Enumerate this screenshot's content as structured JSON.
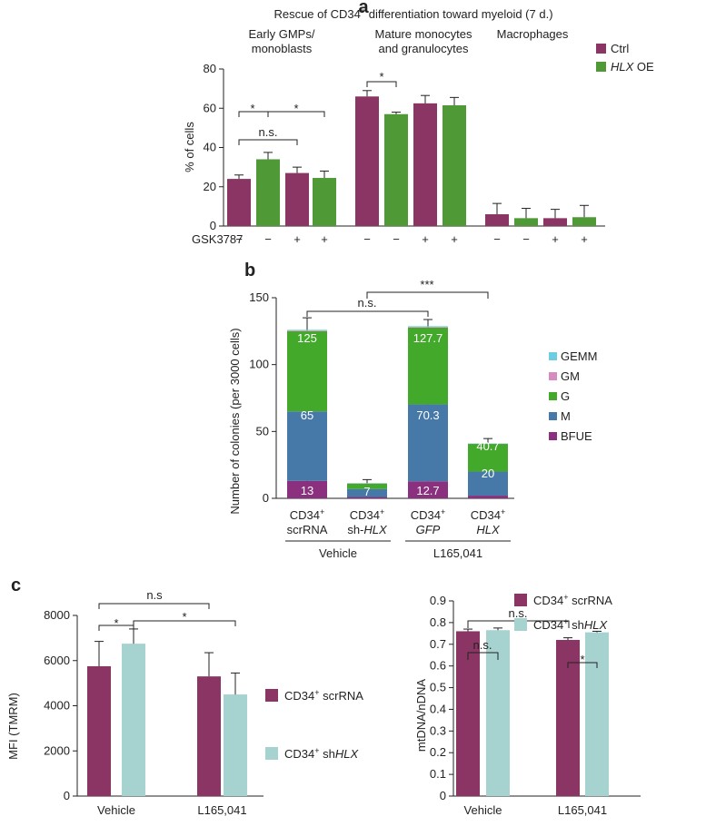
{
  "colors": {
    "ctrl": "#8a3563",
    "oe": "#4f9a36",
    "scr": "#8a3563",
    "sh": "#a6d2cf",
    "BFUE": "#8b2f7f",
    "M": "#4679a8",
    "G": "#43a92b",
    "GM": "#d58cc0",
    "GEMM": "#6ecde0"
  },
  "panel_a": {
    "letter": "a",
    "title_pre": "Rescue of CD34",
    "title_sup": "+",
    "title_post": " differentiation toward myeloid (7 d.)",
    "group_labels": [
      [
        "Early GMPs/",
        "monoblasts"
      ],
      [
        "Mature monocytes",
        "and granulocytes"
      ],
      [
        "Macrophages"
      ]
    ],
    "legend": {
      "ctrl": "Ctrl",
      "oe_italic": "HLX",
      "oe_rest": " OE"
    },
    "treatment_label": "GSK3787",
    "treatment_signs": [
      "−",
      "−",
      "+",
      "+",
      "−",
      "−",
      "+",
      "+",
      "−",
      "−",
      "+",
      "+"
    ],
    "sig": {
      "star": "*",
      "ns": "n.s."
    }
  },
  "panel_b": {
    "letter": "b",
    "ylabel": "Number of colonies (per 3000 cells)",
    "cat_line1": [
      "CD34",
      "CD34",
      "CD34",
      "CD34"
    ],
    "cat_sup": "+",
    "cat_line2_plain": [
      "scrRNA",
      "sh-",
      "",
      ""
    ],
    "cat_line2_italic": [
      "",
      "HLX",
      "GFP",
      "HLX"
    ],
    "group_vehicle": "Vehicle",
    "group_l165": "L165,041",
    "sig": {
      "ns": "n.s.",
      "three": "***"
    },
    "inbar_labels": {
      "BFUE": [
        "13",
        "",
        "12.7",
        ""
      ],
      "M": [
        "65",
        "7",
        "70.3",
        "20"
      ],
      "G": [
        "125",
        "",
        "127.7",
        "40.7"
      ]
    }
  },
  "panel_c": {
    "letter": "c",
    "left_ylabel": "MFI (TMRM)",
    "right_ylabel": "mtDNA/nDNA",
    "legend_scr_pre": "CD34",
    "legend_scr_sup": "+",
    "legend_scr_post": " scrRNA",
    "legend_sh_pre": "CD34",
    "legend_sh_sup": "+",
    "legend_sh_mid": " sh",
    "legend_sh_italic": "HLX",
    "sig": {
      "star": "*",
      "ns_left": "n.s",
      "ns_right": "n.s."
    }
  },
  "chart_data": [
    {
      "id": "a",
      "type": "bar",
      "title": "Rescue of CD34+ differentiation toward myeloid (7 d.)",
      "ylabel": "% of cells",
      "ylim": [
        0,
        80
      ],
      "yticks": [
        0,
        20,
        40,
        60,
        80
      ],
      "xlabel": "GSK3787",
      "groups": [
        "Early GMPs/monoblasts",
        "Mature monocytes and granulocytes",
        "Macrophages"
      ],
      "bars": [
        {
          "group": 0,
          "series": "Ctrl",
          "gsk": "−",
          "value": 24,
          "err": 2
        },
        {
          "group": 0,
          "series": "HLX OE",
          "gsk": "−",
          "value": 34,
          "err": 3.5
        },
        {
          "group": 0,
          "series": "Ctrl",
          "gsk": "+",
          "value": 27,
          "err": 3
        },
        {
          "group": 0,
          "series": "HLX OE",
          "gsk": "+",
          "value": 24.5,
          "err": 3.5
        },
        {
          "group": 1,
          "series": "Ctrl",
          "gsk": "−",
          "value": 66,
          "err": 3
        },
        {
          "group": 1,
          "series": "HLX OE",
          "gsk": "−",
          "value": 57,
          "err": 1
        },
        {
          "group": 1,
          "series": "Ctrl",
          "gsk": "+",
          "value": 62.5,
          "err": 4
        },
        {
          "group": 1,
          "series": "HLX OE",
          "gsk": "+",
          "value": 61.5,
          "err": 4
        },
        {
          "group": 2,
          "series": "Ctrl",
          "gsk": "−",
          "value": 6,
          "err": 5.5
        },
        {
          "group": 2,
          "series": "HLX OE",
          "gsk": "−",
          "value": 4,
          "err": 5
        },
        {
          "group": 2,
          "series": "Ctrl",
          "gsk": "+",
          "value": 4,
          "err": 4.5
        },
        {
          "group": 2,
          "series": "HLX OE",
          "gsk": "+",
          "value": 4.5,
          "err": 6
        }
      ],
      "legend": [
        "Ctrl",
        "HLX OE"
      ]
    },
    {
      "id": "b",
      "type": "bar",
      "stacked": true,
      "ylabel": "Number of colonies (per 3000 cells)",
      "ylim": [
        0,
        150
      ],
      "yticks": [
        0,
        50,
        100,
        150
      ],
      "categories": [
        "CD34+ scrRNA",
        "CD34+ sh-HLX",
        "CD34+ GFP",
        "CD34+ HLX"
      ],
      "groups": [
        {
          "label": "Vehicle",
          "members": [
            0,
            1
          ]
        },
        {
          "label": "L165,041",
          "members": [
            2,
            3
          ]
        }
      ],
      "series": [
        {
          "name": "BFUE",
          "cumulative": [
            13,
            1,
            12.7,
            2
          ],
          "err": [
            3.5,
            0,
            2.5,
            1.5
          ]
        },
        {
          "name": "M",
          "cumulative": [
            65,
            7,
            70.3,
            20
          ],
          "err": [
            7.5,
            0,
            12,
            8
          ]
        },
        {
          "name": "G",
          "cumulative": [
            125,
            11,
            127.7,
            40.7
          ],
          "err": [
            10,
            3,
            6,
            4
          ]
        },
        {
          "name": "GM",
          "cumulative": [
            125.5,
            11.2,
            128.2,
            40.9
          ],
          "err": [
            0,
            0,
            0,
            0
          ]
        },
        {
          "name": "GEMM",
          "cumulative": [
            126,
            11.4,
            128.7,
            41.1
          ],
          "err": [
            0,
            0,
            0,
            0
          ]
        }
      ],
      "legend": [
        "GEMM",
        "GM",
        "G",
        "M",
        "BFUE"
      ]
    },
    {
      "id": "c-left",
      "type": "bar",
      "ylabel": "MFI (TMRM)",
      "ylim": [
        0,
        8000
      ],
      "yticks": [
        0,
        2000,
        4000,
        6000,
        8000
      ],
      "categories": [
        "Vehicle",
        "L165,041"
      ],
      "series": [
        {
          "name": "CD34+ scrRNA",
          "values": [
            5750,
            5300
          ],
          "err": [
            1100,
            1050
          ]
        },
        {
          "name": "CD34+ shHLX",
          "values": [
            6750,
            4500
          ],
          "err": [
            650,
            950
          ]
        }
      ]
    },
    {
      "id": "c-right",
      "type": "bar",
      "ylabel": "mtDNA/nDNA",
      "ylim": [
        0,
        0.9
      ],
      "yticks": [
        0,
        0.1,
        0.2,
        0.3,
        0.4,
        0.5,
        0.6,
        0.7,
        0.8,
        0.9
      ],
      "categories": [
        "Vehicle",
        "L165,041"
      ],
      "series": [
        {
          "name": "CD34+ scrRNA",
          "values": [
            0.76,
            0.72
          ],
          "err": [
            0.01,
            0.01
          ]
        },
        {
          "name": "CD34+ shHLX",
          "values": [
            0.765,
            0.755
          ],
          "err": [
            0.01,
            0.005
          ]
        }
      ]
    }
  ]
}
